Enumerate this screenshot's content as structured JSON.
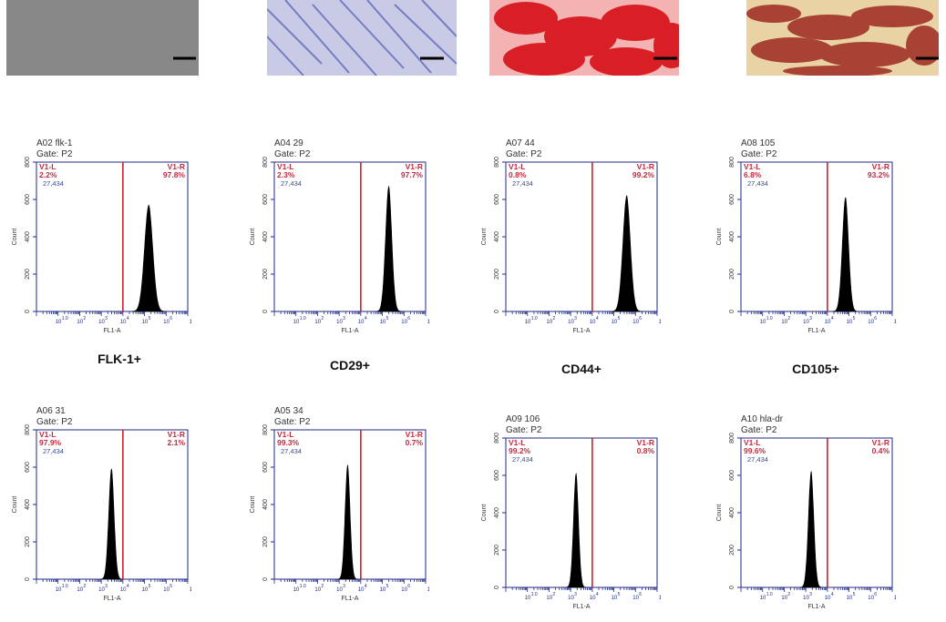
{
  "colors": {
    "axis": "#1f2a8a",
    "gate_line": "#cc1f2b",
    "gate_text": "#c42a3d",
    "count_text": "#3c4a9c",
    "histogram": "#000000",
    "header_text": "#333333"
  },
  "photos": [
    {
      "name": "undifferentiated-cells",
      "color": "#8a8a8a"
    },
    {
      "name": "osteogenic-stain",
      "color": "#7b82c9"
    },
    {
      "name": "adipogenic-oil-red-stain",
      "color": "#d8272c"
    },
    {
      "name": "chondrogenic-stain",
      "color": "#a0312b"
    }
  ],
  "chart_data": [
    {
      "type": "histogram",
      "id": "A02",
      "header": "A02 flk-1",
      "gate": "Gate: P2",
      "xlabel": "FL1-A",
      "ylabel": "Count",
      "xscale": "log",
      "xlim": [
        1.0,
        10000000.0
      ],
      "x_ticks": [
        "10",
        "10",
        "10",
        "10",
        "10",
        "10",
        "10"
      ],
      "x_tick_exps": [
        "1.0",
        "2",
        "3",
        "4",
        "5",
        "6",
        "7.2"
      ],
      "ylim": [
        0,
        800
      ],
      "y_ticks": [
        "0",
        "200",
        "400",
        "600",
        "800"
      ],
      "gate_x": 10000,
      "left_label": "V1-L",
      "left_pct": "2.2%",
      "left_events": "27,434",
      "right_label": "V1-R",
      "right_pct": "97.8%",
      "peak_x": 160000,
      "peak_count": 570,
      "spread": 0.2,
      "title": "FLK-1+"
    },
    {
      "type": "histogram",
      "id": "A04",
      "header": "A04 29",
      "gate": "Gate: P2",
      "xlabel": "FL1-A",
      "ylabel": "Count",
      "xscale": "log",
      "xlim": [
        1.0,
        10000000.0
      ],
      "x_ticks": [
        "10",
        "10",
        "10",
        "10",
        "10",
        "10",
        "10"
      ],
      "x_tick_exps": [
        "1.0",
        "2",
        "3",
        "4",
        "5",
        "6",
        "7.2"
      ],
      "ylim": [
        0,
        800
      ],
      "y_ticks": [
        "0",
        "200",
        "400",
        "600",
        "800"
      ],
      "gate_x": 10000,
      "left_label": "V1-L",
      "left_pct": "2.3%",
      "left_events": "27,434",
      "right_label": "V1-R",
      "right_pct": "97.7%",
      "peak_x": 200000,
      "peak_count": 670,
      "spread": 0.15,
      "title": "CD29+"
    },
    {
      "type": "histogram",
      "id": "A07",
      "header": "A07 44",
      "gate": "Gate: P2",
      "xlabel": "FL1-A",
      "ylabel": "Count",
      "xscale": "log",
      "xlim": [
        1.0,
        10000000.0
      ],
      "x_ticks": [
        "10",
        "10",
        "10",
        "10",
        "10",
        "10",
        "10"
      ],
      "x_tick_exps": [
        "1.0",
        "2",
        "3",
        "4",
        "5",
        "6",
        "7.2"
      ],
      "ylim": [
        0,
        800
      ],
      "y_ticks": [
        "0",
        "200",
        "400",
        "600",
        "800"
      ],
      "gate_x": 10000,
      "left_label": "V1-L",
      "left_pct": "0.8%",
      "left_events": "27,434",
      "right_label": "V1-R",
      "right_pct": "99.2%",
      "peak_x": 400000,
      "peak_count": 620,
      "spread": 0.18,
      "title": "CD44+"
    },
    {
      "type": "histogram",
      "id": "A08",
      "header": "A08 105",
      "gate": "Gate: P2",
      "xlabel": "FL1-A",
      "ylabel": "Count",
      "xscale": "log",
      "xlim": [
        1.0,
        10000000.0
      ],
      "x_ticks": [
        "10",
        "10",
        "10",
        "10",
        "10",
        "10",
        "10"
      ],
      "x_tick_exps": [
        "1.0",
        "2",
        "3",
        "4",
        "5",
        "6",
        "7.2"
      ],
      "ylim": [
        0,
        800
      ],
      "y_ticks": [
        "0",
        "200",
        "400",
        "600",
        "800"
      ],
      "gate_x": 10000,
      "left_label": "V1-L",
      "left_pct": "6.8%",
      "left_events": "27,434",
      "right_label": "V1-R",
      "right_pct": "93.2%",
      "peak_x": 70000,
      "peak_count": 610,
      "spread": 0.15,
      "title": "CD105+"
    },
    {
      "type": "histogram",
      "id": "A06",
      "header": "A06 31",
      "gate": "Gate: P2",
      "xlabel": "FL1-A",
      "ylabel": "Count",
      "xscale": "log",
      "xlim": [
        1.0,
        10000000.0
      ],
      "x_ticks": [
        "10",
        "10",
        "10",
        "10",
        "10",
        "10",
        "10"
      ],
      "x_tick_exps": [
        "1.0",
        "2",
        "3",
        "4",
        "5",
        "6",
        "7.2"
      ],
      "ylim": [
        0,
        800
      ],
      "y_ticks": [
        "0",
        "200",
        "400",
        "600",
        "800"
      ],
      "gate_x": 10000,
      "left_label": "V1-L",
      "left_pct": "97.9%",
      "left_events": "27,434",
      "right_label": "V1-R",
      "right_pct": "2.1%",
      "peak_x": 3000,
      "peak_count": 590,
      "spread": 0.13,
      "title": ""
    },
    {
      "type": "histogram",
      "id": "A05",
      "header": "A05 34",
      "gate": "Gate: P2",
      "xlabel": "FL1-A",
      "ylabel": "Count",
      "xscale": "log",
      "xlim": [
        1.0,
        10000000.0
      ],
      "x_ticks": [
        "10",
        "10",
        "10",
        "10",
        "10",
        "10",
        "10"
      ],
      "x_tick_exps": [
        "1.0",
        "2",
        "3",
        "4",
        "5",
        "6",
        "7.2"
      ],
      "ylim": [
        0,
        800
      ],
      "y_ticks": [
        "0",
        "200",
        "400",
        "600",
        "800"
      ],
      "gate_x": 10000,
      "left_label": "V1-L",
      "left_pct": "99.3%",
      "left_events": "27,434",
      "right_label": "V1-R",
      "right_pct": "0.7%",
      "peak_x": 2500,
      "peak_count": 610,
      "spread": 0.12,
      "title": ""
    },
    {
      "type": "histogram",
      "id": "A09",
      "header": "A09 106",
      "gate": "Gate: P2",
      "xlabel": "FL1-A",
      "ylabel": "Count",
      "xscale": "log",
      "xlim": [
        1.0,
        10000000.0
      ],
      "x_ticks": [
        "10",
        "10",
        "10",
        "10",
        "10",
        "10",
        "10"
      ],
      "x_tick_exps": [
        "1.0",
        "2",
        "3",
        "4",
        "5",
        "6",
        "7.2"
      ],
      "ylim": [
        0,
        800
      ],
      "y_ticks": [
        "0",
        "200",
        "400",
        "600",
        "800"
      ],
      "gate_x": 10000,
      "left_label": "V1-L",
      "left_pct": "99.2%",
      "left_events": "27,434",
      "right_label": "V1-R",
      "right_pct": "0.8%",
      "peak_x": 1800,
      "peak_count": 610,
      "spread": 0.12,
      "title": ""
    },
    {
      "type": "histogram",
      "id": "A10",
      "header": "A10 hla-dr",
      "gate": "Gate: P2",
      "xlabel": "FL1-A",
      "ylabel": "Count",
      "xscale": "log",
      "xlim": [
        1.0,
        10000000.0
      ],
      "x_ticks": [
        "10",
        "10",
        "10",
        "10",
        "10",
        "10",
        "10"
      ],
      "x_tick_exps": [
        "1.0",
        "2",
        "3",
        "4",
        "5",
        "6",
        "7.2"
      ],
      "ylim": [
        0,
        800
      ],
      "y_ticks": [
        "0",
        "200",
        "400",
        "600",
        "800"
      ],
      "gate_x": 10000,
      "left_label": "V1-L",
      "left_pct": "99.6%",
      "left_events": "27,434",
      "right_label": "V1-R",
      "right_pct": "0.4%",
      "peak_x": 1800,
      "peak_count": 620,
      "spread": 0.13,
      "title": ""
    }
  ]
}
